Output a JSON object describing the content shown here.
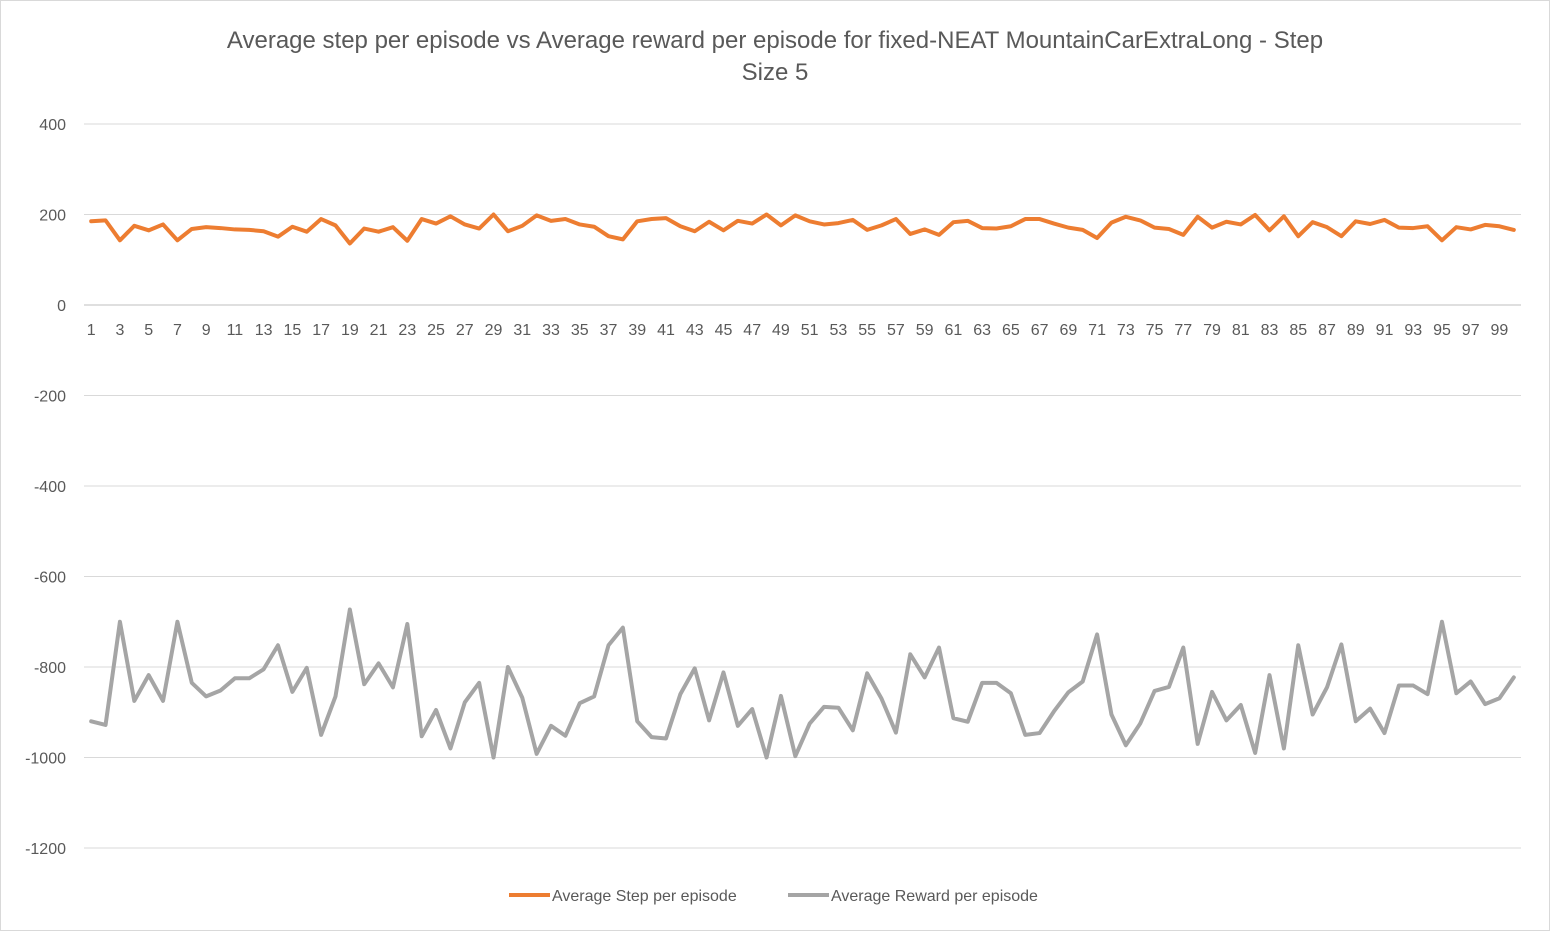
{
  "chart_data": {
    "type": "line",
    "title": "Average step per episode vs Average reward per episode for fixed-NEAT MountainCarExtraLong  - Step\nSize 5",
    "xlabel": "",
    "ylabel": "",
    "ylim": [
      -1200,
      400
    ],
    "yticks": [
      400,
      200,
      0,
      -200,
      -400,
      -600,
      -800,
      -1000,
      -1200
    ],
    "x": [
      1,
      2,
      3,
      4,
      5,
      6,
      7,
      8,
      9,
      10,
      11,
      12,
      13,
      14,
      15,
      16,
      17,
      18,
      19,
      20,
      21,
      22,
      23,
      24,
      25,
      26,
      27,
      28,
      29,
      30,
      31,
      32,
      33,
      34,
      35,
      36,
      37,
      38,
      39,
      40,
      41,
      42,
      43,
      44,
      45,
      46,
      47,
      48,
      49,
      50,
      51,
      52,
      53,
      54,
      55,
      56,
      57,
      58,
      59,
      60,
      61,
      62,
      63,
      64,
      65,
      66,
      67,
      68,
      69,
      70,
      71,
      72,
      73,
      74,
      75,
      76,
      77,
      78,
      79,
      80,
      81,
      82,
      83,
      84,
      85,
      86,
      87,
      88,
      89,
      90,
      91,
      92,
      93,
      94,
      95,
      96,
      97,
      98,
      99,
      100
    ],
    "x_tick_labels": [
      "1",
      "3",
      "5",
      "7",
      "9",
      "11",
      "13",
      "15",
      "17",
      "19",
      "21",
      "23",
      "25",
      "27",
      "29",
      "31",
      "33",
      "35",
      "37",
      "39",
      "41",
      "43",
      "45",
      "47",
      "49",
      "51",
      "53",
      "55",
      "57",
      "59",
      "61",
      "63",
      "65",
      "67",
      "69",
      "71",
      "73",
      "75",
      "77",
      "79",
      "81",
      "83",
      "85",
      "87",
      "89",
      "91",
      "93",
      "95",
      "97",
      "99"
    ],
    "grid": true,
    "legend_position": "bottom",
    "series": [
      {
        "name": "Average Step per episode",
        "color": "#ed7d31",
        "values": [
          185,
          187,
          143,
          175,
          165,
          178,
          143,
          168,
          172,
          170,
          167,
          166,
          163,
          151,
          173,
          162,
          190,
          176,
          136,
          169,
          162,
          172,
          142,
          190,
          180,
          196,
          178,
          169,
          200,
          163,
          175,
          198,
          186,
          190,
          178,
          173,
          152,
          145,
          185,
          190,
          192,
          174,
          163,
          184,
          165,
          186,
          180,
          200,
          176,
          198,
          185,
          178,
          181,
          188,
          166,
          176,
          190,
          157,
          167,
          155,
          183,
          186,
          170,
          169,
          174,
          190,
          190,
          180,
          171,
          166,
          148,
          182,
          195,
          187,
          171,
          168,
          155,
          195,
          171,
          184,
          178,
          199,
          165,
          196,
          152,
          183,
          172,
          152,
          185,
          179,
          188,
          171,
          170,
          174,
          143,
          172,
          167,
          177,
          174,
          166
        ]
      },
      {
        "name": "Average Reward per episode",
        "color": "#a5a5a5",
        "values": [
          -920,
          -928,
          -700,
          -875,
          -818,
          -875,
          -700,
          -835,
          -865,
          -852,
          -825,
          -825,
          -805,
          -752,
          -855,
          -802,
          -950,
          -865,
          -673,
          -838,
          -792,
          -845,
          -705,
          -953,
          -895,
          -980,
          -878,
          -835,
          -1000,
          -800,
          -868,
          -992,
          -930,
          -952,
          -880,
          -865,
          -752,
          -713,
          -920,
          -955,
          -958,
          -860,
          -803,
          -918,
          -812,
          -930,
          -893,
          -1000,
          -864,
          -997,
          -925,
          -888,
          -890,
          -940,
          -814,
          -870,
          -945,
          -772,
          -823,
          -757,
          -913,
          -921,
          -835,
          -835,
          -858,
          -950,
          -946,
          -898,
          -856,
          -832,
          -728,
          -905,
          -973,
          -925,
          -853,
          -844,
          -757,
          -970,
          -855,
          -918,
          -884,
          -990,
          -818,
          -980,
          -752,
          -905,
          -845,
          -750,
          -920,
          -892,
          -946,
          -841,
          -841,
          -860,
          -700,
          -858,
          -832,
          -882,
          -869,
          -823
        ]
      }
    ]
  }
}
